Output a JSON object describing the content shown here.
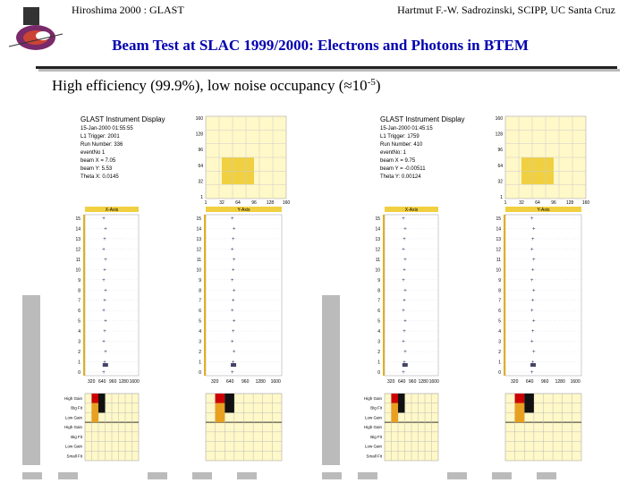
{
  "header": {
    "left": "Hiroshima 2000 : GLAST",
    "right": "Hartmut F.-W. Sadrozinski, SCIPP, UC Santa Cruz"
  },
  "title": "Beam Test at SLAC 1999/2000:  Electrons and Photons in BTEM",
  "subtitle": {
    "text": "High efficiency (99.9%), low noise occupancy (≈10",
    "superscript": "-5",
    "close": ")"
  },
  "displays": [
    {
      "info": [
        "GLAST Instrument Display",
        "15-Jan-2000 01:55:55",
        "L1 Trigger: 2001",
        "Run Number: 336",
        "eventNo 1",
        "beam X = 7.05",
        "beam Y: 5.53",
        "Theta X: 0.0145"
      ],
      "x_axis_label": "X-Axis",
      "y_axis_label": "Y-Axis",
      "map_y_ticks": [
        "160",
        "128",
        "96",
        "64",
        "32",
        "1"
      ],
      "map_x_ticks": [
        "1",
        "32",
        "64",
        "96",
        "128",
        "160"
      ],
      "layer_ticks": [
        "0",
        "1",
        "2",
        "3",
        "4",
        "5",
        "6",
        "7",
        "8",
        "9",
        "10",
        "11",
        "12",
        "13",
        "14",
        "15"
      ],
      "strip_ticks": [
        "320",
        "640",
        "960",
        "1280",
        "1600"
      ],
      "cal_rows": [
        "High Gain",
        "Big Fit",
        "Low Gain",
        "High Gain",
        "Big Fit",
        "Low Gain",
        "Small Fit"
      ]
    },
    {
      "info": [
        "GLAST Instrument Display",
        "15-Jan-2000 01:45:15",
        "L1 Trigger: 1759",
        "Run Number: 410",
        "eventNo: 1",
        "beam X = 9.75",
        "beam Y = -0.00511",
        "Theta Y: 0.00124"
      ],
      "x_axis_label": "X-Axis",
      "y_axis_label": "Y-Axis",
      "map_y_ticks": [
        "160",
        "128",
        "96",
        "64",
        "32",
        "1"
      ],
      "map_x_ticks": [
        "1",
        "32",
        "64",
        "96",
        "128",
        "160"
      ],
      "layer_ticks": [
        "0",
        "1",
        "2",
        "3",
        "4",
        "5",
        "6",
        "7",
        "8",
        "9",
        "10",
        "11",
        "12",
        "13",
        "14",
        "15"
      ],
      "strip_ticks": [
        "320",
        "640",
        "960",
        "1280",
        "1600"
      ],
      "cal_rows": [
        "High Gain",
        "Big Fit",
        "Low Gain",
        "High Gain",
        "Big Fit",
        "Low Gain",
        "Small Fit"
      ]
    }
  ]
}
